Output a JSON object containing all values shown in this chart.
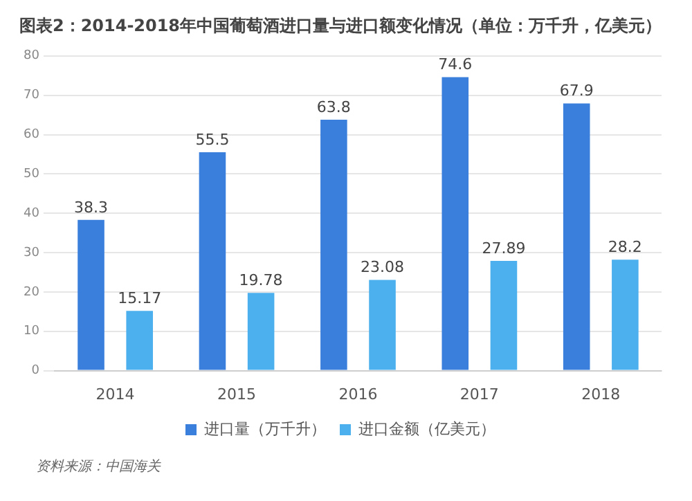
{
  "chart_data": {
    "type": "bar",
    "title": "图表2：2014-2018年中国葡萄酒进口量与进口额变化情况（单位：万千升，亿美元）",
    "categories": [
      "2014",
      "2015",
      "2016",
      "2017",
      "2018"
    ],
    "series": [
      {
        "name": "进口量（万千升）",
        "color": "#3a7fdc",
        "values": [
          38.3,
          55.5,
          63.8,
          74.6,
          67.9
        ]
      },
      {
        "name": "进口金额（亿美元）",
        "color": "#4cb0ee",
        "values": [
          15.17,
          19.78,
          23.08,
          27.89,
          28.2
        ]
      }
    ],
    "ylim": [
      0,
      80
    ],
    "yticks": [
      0,
      10,
      20,
      30,
      40,
      50,
      60,
      70,
      80
    ],
    "grid": "y",
    "legend": "bottom",
    "data_labels": true,
    "annotations": [
      "资料来源：中国海关"
    ]
  }
}
